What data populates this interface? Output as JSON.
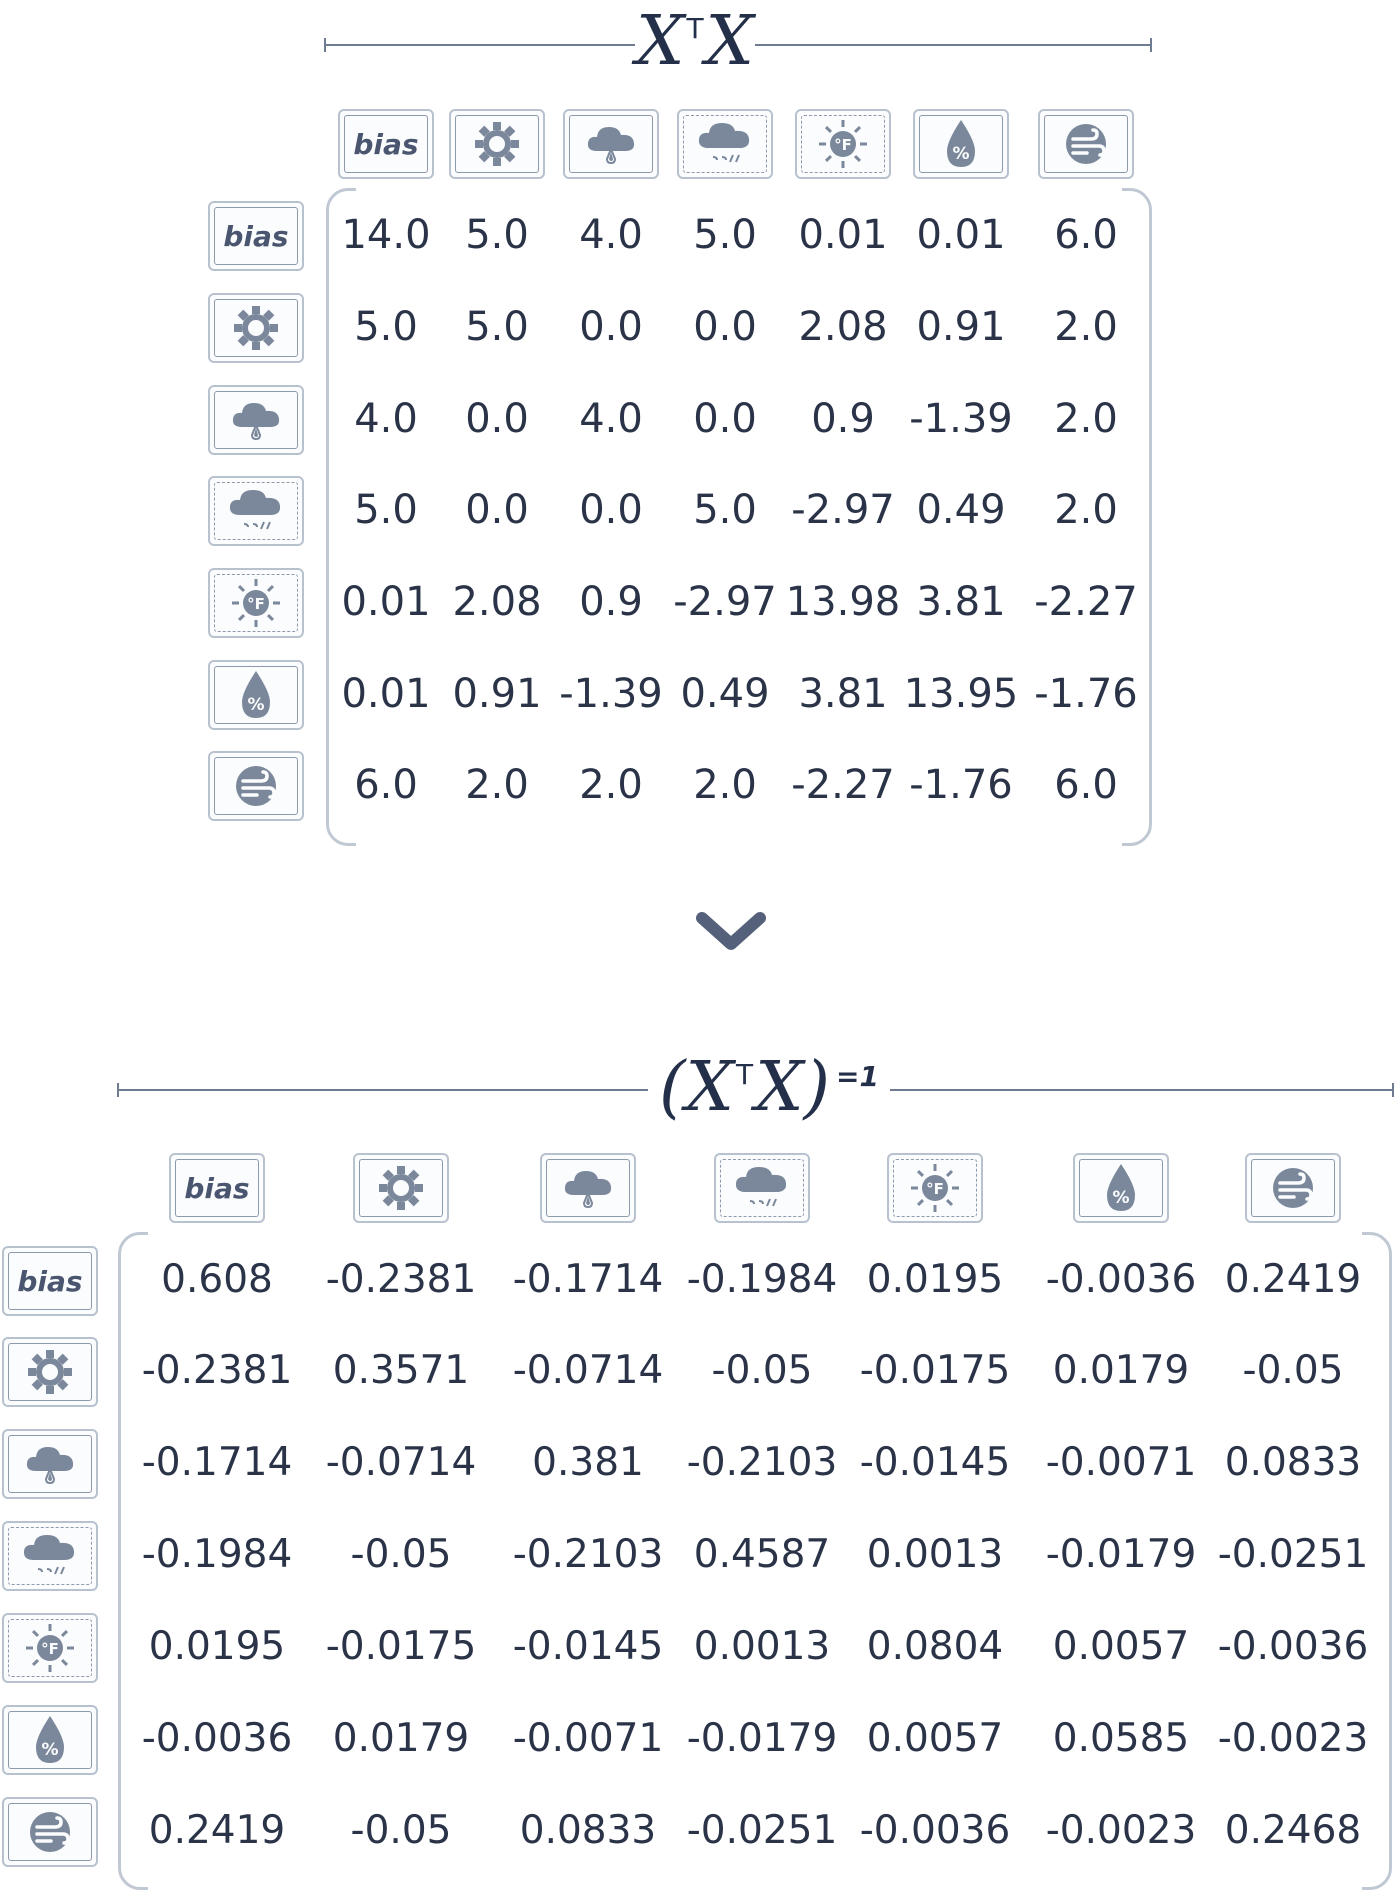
{
  "matrix_top": {
    "title_main": "X",
    "title_sup": "T",
    "title_end": "X",
    "row_headers": [
      "bias",
      "sun-icon",
      "rain-cloud-icon",
      "storm-cloud-icon",
      "temperature-icon",
      "humidity-icon",
      "wind-icon"
    ],
    "col_headers": [
      "bias",
      "sun-icon",
      "rain-cloud-icon",
      "storm-cloud-icon",
      "temperature-icon",
      "humidity-icon",
      "wind-icon"
    ],
    "bias_label": "bias",
    "rows": [
      [
        "14.0",
        "5.0",
        "4.0",
        "5.0",
        "0.01",
        "0.01",
        "6.0"
      ],
      [
        "5.0",
        "5.0",
        "0.0",
        "0.0",
        "2.08",
        "0.91",
        "2.0"
      ],
      [
        "4.0",
        "0.0",
        "4.0",
        "0.0",
        "0.9",
        "-1.39",
        "2.0"
      ],
      [
        "5.0",
        "0.0",
        "0.0",
        "5.0",
        "-2.97",
        "0.49",
        "2.0"
      ],
      [
        "0.01",
        "2.08",
        "0.9",
        "-2.97",
        "13.98",
        "3.81",
        "-2.27"
      ],
      [
        "0.01",
        "0.91",
        "-1.39",
        "0.49",
        "3.81",
        "13.95",
        "-1.76"
      ],
      [
        "6.0",
        "2.0",
        "2.0",
        "2.0",
        "-2.27",
        "-1.76",
        "6.0"
      ]
    ]
  },
  "arrow": {
    "icon": "chevron-down-icon"
  },
  "matrix_bottom": {
    "title_open": "(",
    "title_main": "X",
    "title_sup": "T",
    "title_end": "X",
    "title_close": ")",
    "title_inv": "=1",
    "bias_label": "bias",
    "rows": [
      [
        "0.608",
        "-0.2381",
        "-0.1714",
        "-0.1984",
        "0.0195",
        "-0.0036",
        "0.2419"
      ],
      [
        "-0.2381",
        "0.3571",
        "-0.0714",
        "-0.05",
        "-0.0175",
        "0.0179",
        "-0.05"
      ],
      [
        "-0.1714",
        "-0.0714",
        "0.381",
        "-0.2103",
        "-0.0145",
        "-0.0071",
        "0.0833"
      ],
      [
        "-0.1984",
        "-0.05",
        "-0.2103",
        "0.4587",
        "0.0013",
        "-0.0179",
        "-0.0251"
      ],
      [
        "0.0195",
        "-0.0175",
        "-0.0145",
        "0.0013",
        "0.0804",
        "0.0057",
        "-0.0036"
      ],
      [
        "-0.0036",
        "0.0179",
        "-0.0071",
        "-0.0179",
        "0.0057",
        "0.0585",
        "-0.0023"
      ],
      [
        "0.2419",
        "-0.05",
        "0.0833",
        "-0.0251",
        "-0.0036",
        "-0.0023",
        "0.2468"
      ]
    ]
  },
  "colors": {
    "ink": "#2a3347",
    "frame": "#c0c8d3",
    "icon": "#7b889b"
  }
}
